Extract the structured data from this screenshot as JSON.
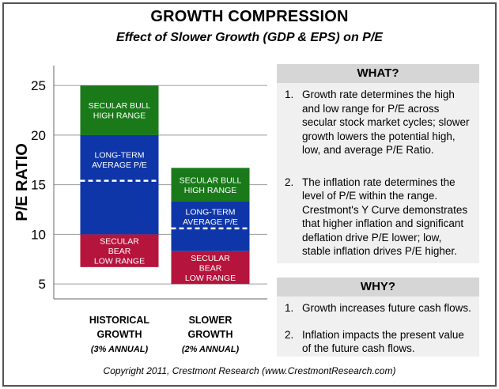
{
  "header": {
    "title": "GROWTH COMPRESSION",
    "subtitle": "Effect of Slower Growth (GDP & EPS) on P/E"
  },
  "chart_data": {
    "type": "bar",
    "ylabel": "P/E RATIO",
    "ylim": [
      3.5,
      27
    ],
    "yticks": [
      5,
      10,
      15,
      20,
      25
    ],
    "grid": true,
    "categories": [
      {
        "line1": "HISTORICAL",
        "line2": "GROWTH",
        "line3": "(3% ANNUAL)"
      },
      {
        "line1": "SLOWER",
        "line2": "GROWTH",
        "line3": "(2% ANNUAL)"
      }
    ],
    "bars": [
      {
        "average": 15.4,
        "segments": [
          {
            "name": "bear",
            "from": 6.7,
            "to": 10,
            "color": "#b5143c",
            "label": [
              "SECULAR",
              "BEAR",
              "LOW RANGE"
            ]
          },
          {
            "name": "average",
            "from": 10,
            "to": 20,
            "color": "#0f36a8",
            "label": [
              "LONG-TERM",
              "AVERAGE P/E"
            ]
          },
          {
            "name": "bull",
            "from": 20,
            "to": 25,
            "color": "#1a7a1a",
            "label": [
              "SECULAR BULL",
              "HIGH RANGE"
            ]
          }
        ]
      },
      {
        "average": 10.6,
        "segments": [
          {
            "name": "bear",
            "from": 5,
            "to": 8.3,
            "color": "#b5143c",
            "label": [
              "SECULAR",
              "BEAR",
              "LOW RANGE"
            ]
          },
          {
            "name": "average",
            "from": 8.3,
            "to": 13.3,
            "color": "#0f36a8",
            "label": [
              "LONG-TERM",
              "AVERAGE P/E"
            ]
          },
          {
            "name": "bull",
            "from": 13.3,
            "to": 16.7,
            "color": "#1a7a1a",
            "label": [
              "SECULAR BULL",
              "HIGH RANGE"
            ]
          }
        ]
      }
    ]
  },
  "what_panel": {
    "heading": "WHAT?",
    "items": [
      {
        "num": "1.",
        "text": "Growth rate determines the high and low range for P/E across secular stock market cycles; slower growth lowers the potential high, low, and average P/E Ratio."
      },
      {
        "num": "2.",
        "text": "The inflation rate determines the level of P/E within the range. Crestmont's Y Curve demonstrates that higher inflation and significant deflation drive P/E lower; low, stable inflation drives P/E higher."
      }
    ]
  },
  "why_panel": {
    "heading": "WHY?",
    "items": [
      {
        "num": "1.",
        "text": "Growth increases future cash flows."
      },
      {
        "num": "2.",
        "text": "Inflation impacts the present value of the future cash flows."
      }
    ]
  },
  "footer": {
    "copyright": "Copyright 2011, Crestmont Research (www.CrestmontResearch.com)"
  }
}
